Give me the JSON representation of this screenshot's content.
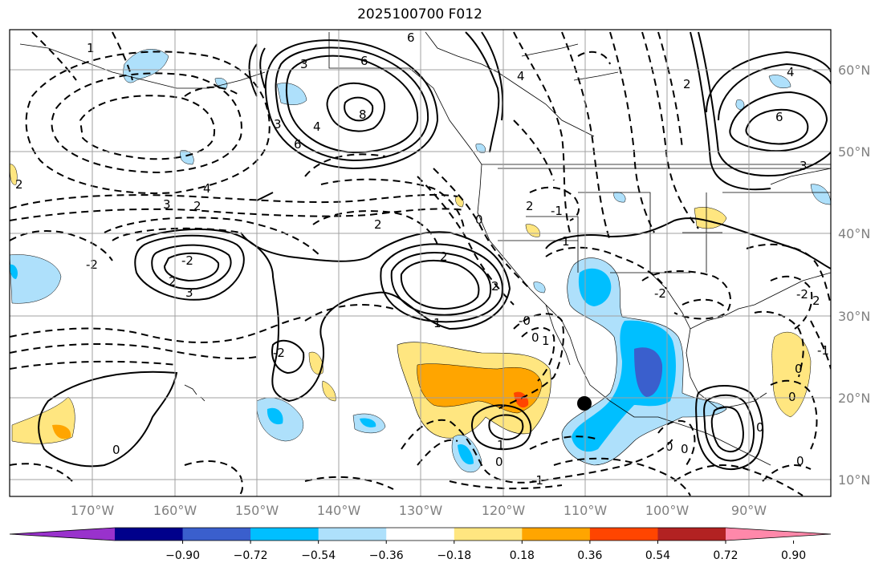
{
  "title": "2025100700 F012",
  "grid": {
    "lat_labels": [
      "60°N",
      "50°N",
      "40°N",
      "30°N",
      "20°N",
      "10°N"
    ],
    "lon_labels": [
      "170°W",
      "160°W",
      "150°W",
      "140°W",
      "130°W",
      "120°W",
      "110°W",
      "100°W",
      "90°W"
    ]
  },
  "colorbar": {
    "levels": [
      "−0.90",
      "−0.72",
      "−0.54",
      "−0.36",
      "−0.18",
      "0.18",
      "0.36",
      "0.54",
      "0.72",
      "0.90"
    ],
    "colors": [
      "#9932cc",
      "#00008b",
      "#3a5fcd",
      "#00bfff",
      "#aee0fb",
      "#ffffff",
      "#ffe680",
      "#ffa500",
      "#ff4500",
      "#b22222",
      "#ff88aa"
    ]
  },
  "contour_labels": [
    "6",
    "3",
    "6",
    "8",
    "4",
    "6",
    "3",
    "4",
    "2",
    "4",
    "6",
    "3",
    "4",
    "2",
    "3",
    "-2",
    "2",
    "3",
    "2",
    "2",
    "-2",
    "1",
    "1",
    "0",
    "2",
    "-1",
    "-2",
    "-2",
    "2",
    "-2",
    "0",
    "-0",
    "2",
    "-1",
    "1",
    "0",
    "0",
    "1",
    "0",
    "0",
    "-1",
    "0",
    "0",
    "0",
    "0",
    "1",
    "2"
  ],
  "marker": {
    "lon": -110,
    "lat": 19
  }
}
